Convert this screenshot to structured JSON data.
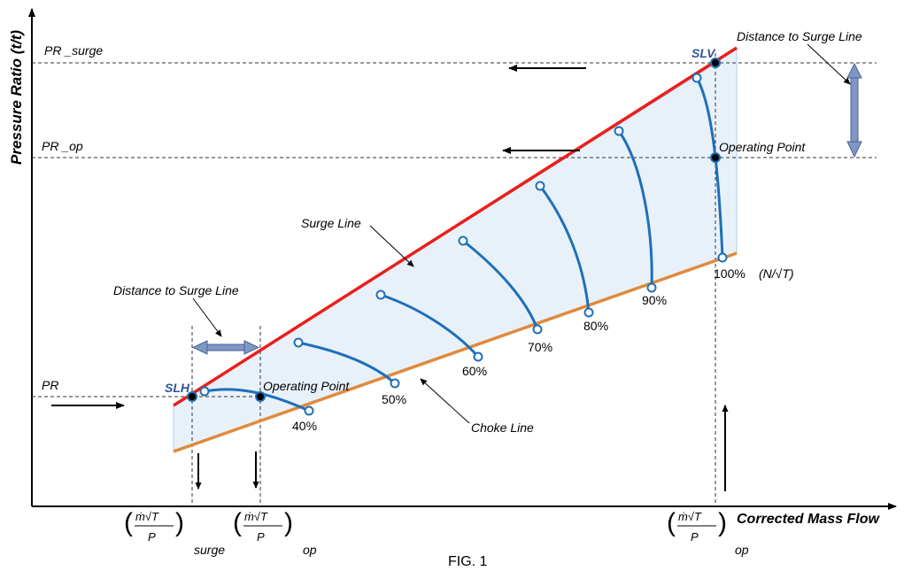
{
  "axes": {
    "y_label": "Pressure Ratio (t/t)",
    "x_label": "Corrected Mass Flow"
  },
  "caption": "FIG. 1",
  "pr_labels": {
    "surge": "PR _surge",
    "op": "PR _op",
    "pr": "PR"
  },
  "lines": {
    "surge": "Surge Line",
    "choke": "Choke Line"
  },
  "points": {
    "slv": "SLV",
    "slh": "SLH",
    "op_upper": "Operating Point",
    "op_lower": "Operating Point"
  },
  "distance_labels": {
    "upper": "Distance to Surge Line",
    "lower": "Distance to Surge Line"
  },
  "speed_lines": [
    "40%",
    "50%",
    "60%",
    "70%",
    "80%",
    "90%",
    "100%"
  ],
  "speed_unit": "(N/√T)",
  "mass_flow_labels": {
    "numerator": "ṁ√T",
    "denominator": "P",
    "surge_sub": "surge",
    "op_sub": "op",
    "op_sub_right": "op"
  },
  "colors": {
    "surge_line": "#e8201c",
    "choke_line": "#e08a3c",
    "speed_line": "#1f6fb8",
    "fill": "#e8f1fa",
    "label_blue": "#2f5597",
    "double_arrow": "#7f97c4"
  }
}
